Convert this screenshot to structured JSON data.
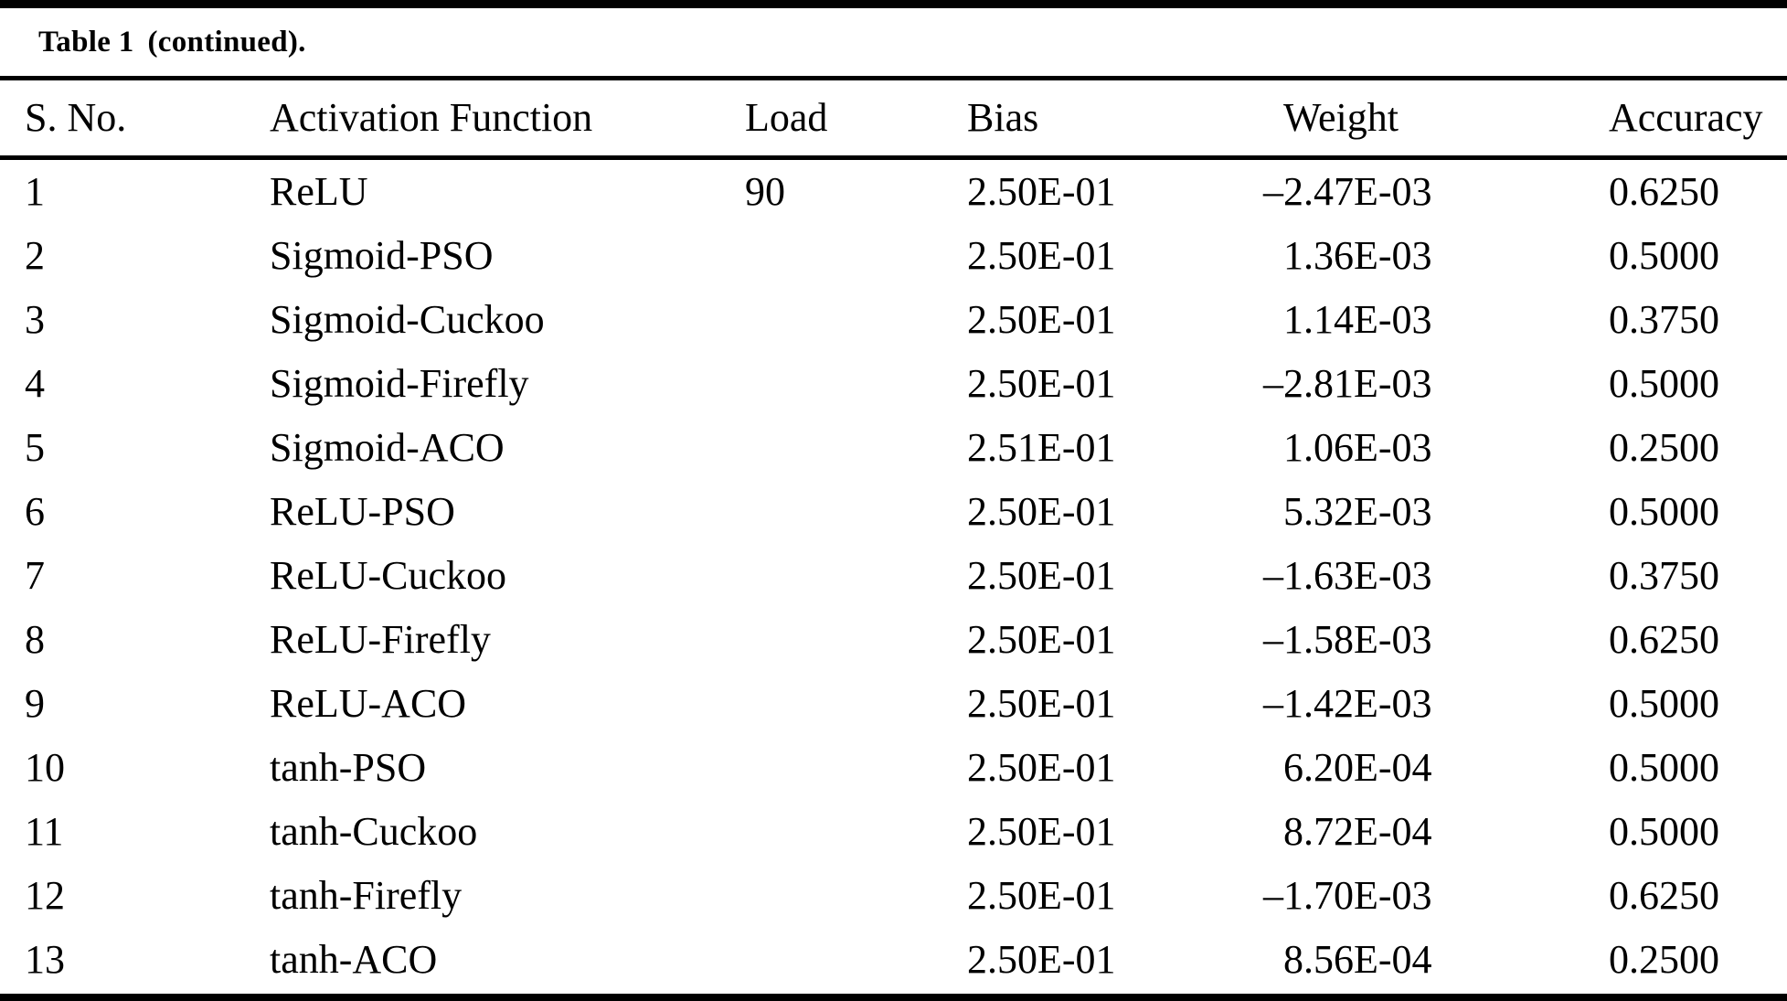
{
  "page": {
    "title_label": "Table 1",
    "title_suffix": "(continued)."
  },
  "table": {
    "columns": [
      "S. No.",
      "Activation Function",
      "Load",
      "Bias",
      "Weight",
      "Accuracy"
    ],
    "rows": [
      {
        "sno": "1",
        "activation_function": "ReLU",
        "load": "90",
        "bias": "2.50E-01",
        "weight": "–2.47E-03",
        "accuracy": "0.6250"
      },
      {
        "sno": "2",
        "activation_function": "Sigmoid-PSO",
        "load": "",
        "bias": "2.50E-01",
        "weight": "1.36E-03",
        "accuracy": "0.5000"
      },
      {
        "sno": "3",
        "activation_function": "Sigmoid-Cuckoo",
        "load": "",
        "bias": "2.50E-01",
        "weight": "1.14E-03",
        "accuracy": "0.3750"
      },
      {
        "sno": "4",
        "activation_function": "Sigmoid-Firefly",
        "load": "",
        "bias": "2.50E-01",
        "weight": "–2.81E-03",
        "accuracy": "0.5000"
      },
      {
        "sno": "5",
        "activation_function": "Sigmoid-ACO",
        "load": "",
        "bias": "2.51E-01",
        "weight": "1.06E-03",
        "accuracy": "0.2500"
      },
      {
        "sno": "6",
        "activation_function": "ReLU-PSO",
        "load": "",
        "bias": "2.50E-01",
        "weight": "5.32E-03",
        "accuracy": "0.5000"
      },
      {
        "sno": "7",
        "activation_function": "ReLU-Cuckoo",
        "load": "",
        "bias": "2.50E-01",
        "weight": "–1.63E-03",
        "accuracy": "0.3750"
      },
      {
        "sno": "8",
        "activation_function": "ReLU-Firefly",
        "load": "",
        "bias": "2.50E-01",
        "weight": "–1.58E-03",
        "accuracy": "0.6250"
      },
      {
        "sno": "9",
        "activation_function": "ReLU-ACO",
        "load": "",
        "bias": "2.50E-01",
        "weight": "–1.42E-03",
        "accuracy": "0.5000"
      },
      {
        "sno": "10",
        "activation_function": "tanh-PSO",
        "load": "",
        "bias": "2.50E-01",
        "weight": "6.20E-04",
        "accuracy": "0.5000"
      },
      {
        "sno": "11",
        "activation_function": "tanh-Cuckoo",
        "load": "",
        "bias": "2.50E-01",
        "weight": "8.72E-04",
        "accuracy": "0.5000"
      },
      {
        "sno": "12",
        "activation_function": "tanh-Firefly",
        "load": "",
        "bias": "2.50E-01",
        "weight": "–1.70E-03",
        "accuracy": "0.6250"
      },
      {
        "sno": "13",
        "activation_function": "tanh-ACO",
        "load": "",
        "bias": "2.50E-01",
        "weight": "8.56E-04",
        "accuracy": "0.2500"
      }
    ]
  },
  "colors": {
    "text": "#000000",
    "background": "#ffffff",
    "rule": "#000000"
  }
}
